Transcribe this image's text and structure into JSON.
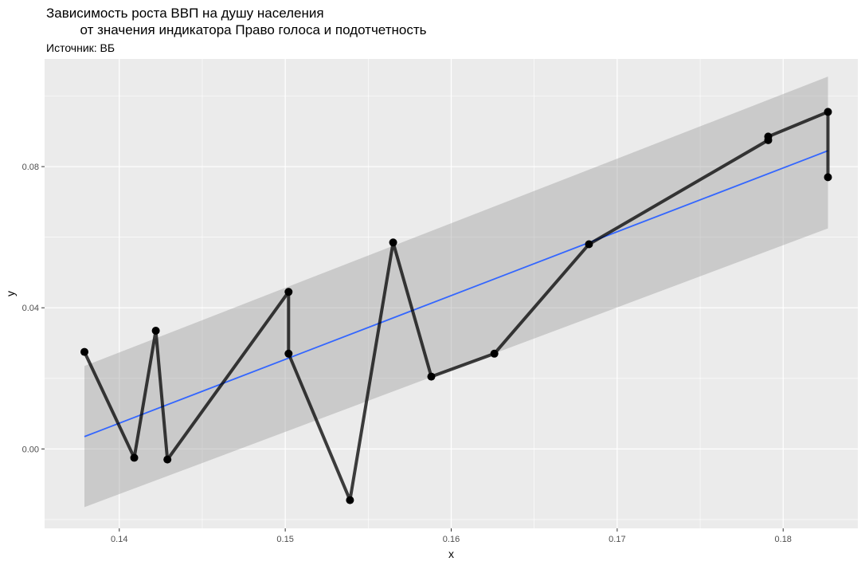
{
  "chart_data": {
    "type": "line",
    "title_lines": [
      "Зависимость роста ВВП на душу населения",
      "         от значения индикатора Право голоса и подотчетность"
    ],
    "subtitle": "Источник: ВБ",
    "xlabel": "x",
    "ylabel": "y",
    "xlim": [
      0.1355,
      0.1845
    ],
    "ylim": [
      -0.0225,
      0.1105
    ],
    "x_ticks": [
      0.14,
      0.15,
      0.16,
      0.17,
      0.18
    ],
    "x_tick_labels": [
      "0.14",
      "0.15",
      "0.16",
      "0.17",
      "0.18"
    ],
    "y_ticks": [
      0.0,
      0.04,
      0.08
    ],
    "y_tick_labels": [
      "0.00",
      "0.04",
      "0.08"
    ],
    "grid": true,
    "series": [
      {
        "kind": "line+points",
        "color": "#000000",
        "x": [
          0.1379,
          0.1409,
          0.1422,
          0.1429,
          0.1502,
          0.1502,
          0.1539,
          0.1565,
          0.1588,
          0.1626,
          0.1683,
          0.1791,
          0.1791,
          0.1827,
          0.1827
        ],
        "y": [
          0.0275,
          -0.0025,
          0.0335,
          -0.003,
          0.0445,
          0.027,
          -0.0145,
          0.0585,
          0.0205,
          0.027,
          0.058,
          0.0875,
          0.0885,
          0.0955,
          0.077
        ]
      },
      {
        "kind": "lm-fit",
        "color": "#3366FF",
        "band_color": "#999999",
        "x": [
          0.1379,
          0.1827
        ],
        "y": [
          0.0035,
          0.0845
        ],
        "ci_upper": [
          0.0235,
          0.1055
        ],
        "ci_lower": [
          -0.0165,
          0.0625
        ]
      }
    ]
  }
}
